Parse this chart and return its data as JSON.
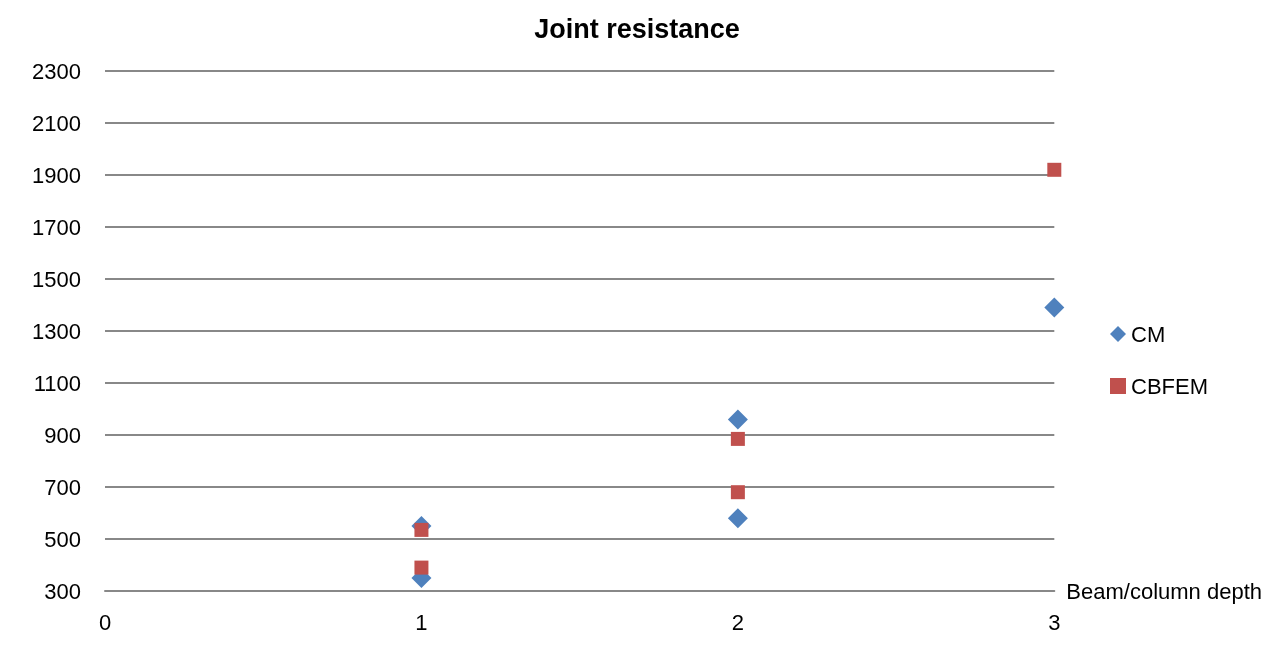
{
  "chart_data": {
    "type": "scatter",
    "title": "Joint resistance",
    "xlabel": "Beam/column depth",
    "xlim": [
      0,
      3
    ],
    "xticks": [
      0,
      1,
      2,
      3
    ],
    "ylim": [
      300,
      2300
    ],
    "yticks": [
      300,
      500,
      700,
      900,
      1100,
      1300,
      1500,
      1700,
      1900,
      2100,
      2300
    ],
    "grid": "y",
    "legend": "right",
    "series": [
      {
        "name": "CM",
        "color": "#4f81bd",
        "marker": "diamond",
        "x": [
          1,
          1,
          2,
          2,
          3
        ],
        "values": [
          550,
          350,
          960,
          580,
          1390
        ]
      },
      {
        "name": "CBFEM",
        "color": "#c0504d",
        "marker": "square",
        "x": [
          1,
          1,
          2,
          2,
          3
        ],
        "values": [
          535,
          390,
          885,
          680,
          1920
        ]
      }
    ]
  }
}
